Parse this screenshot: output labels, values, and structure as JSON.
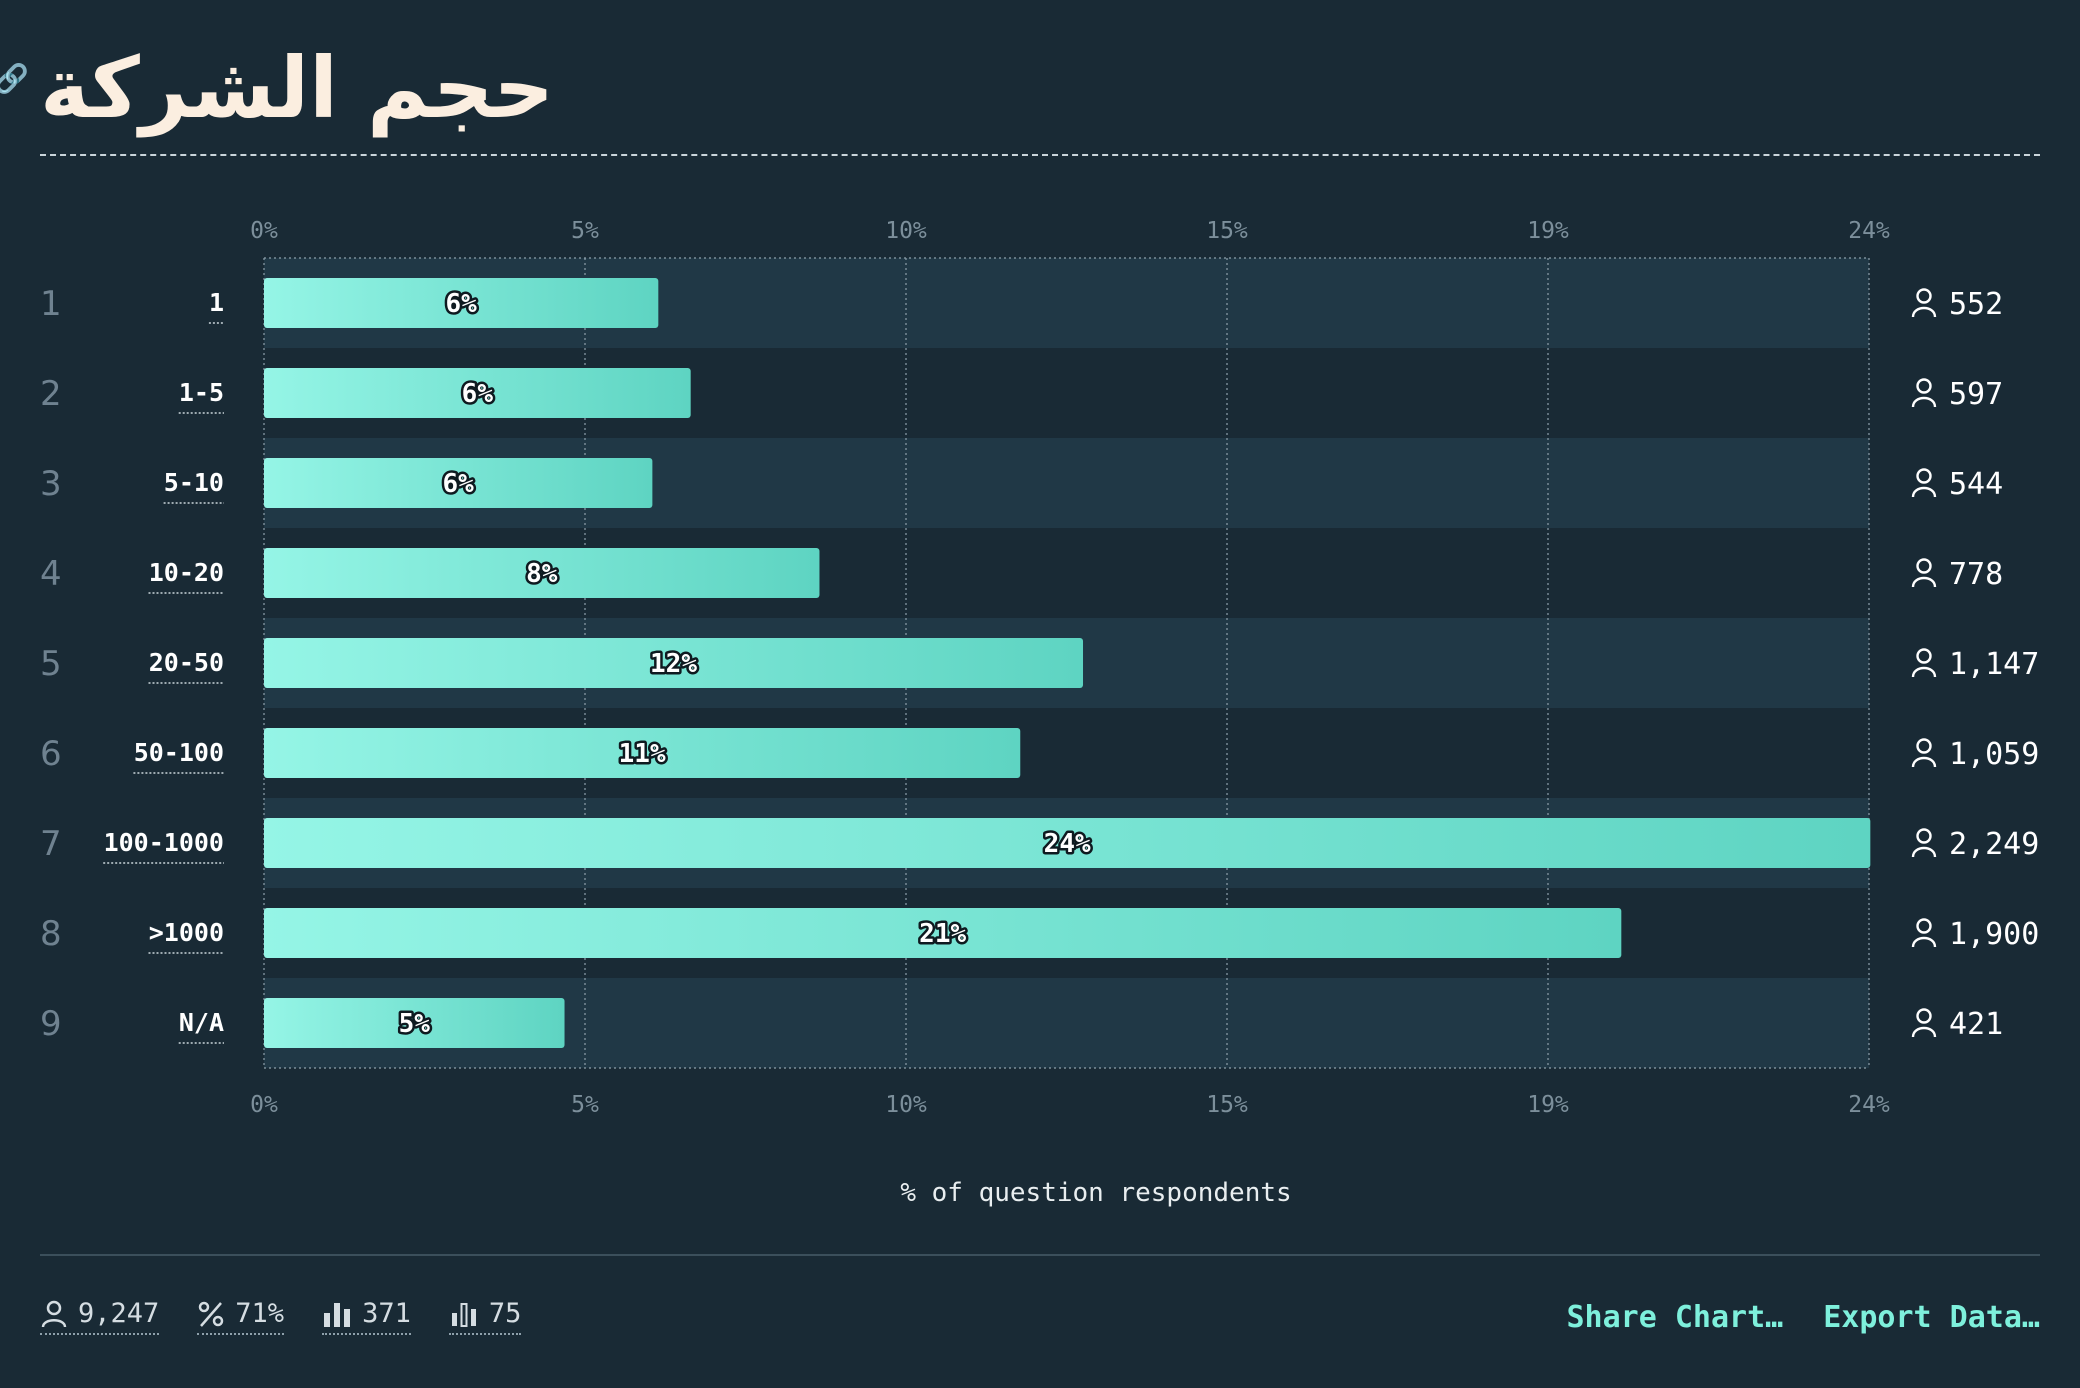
{
  "header": {
    "title": "حجم الشركة"
  },
  "chart_data": {
    "type": "bar",
    "orientation": "horizontal",
    "title": "حجم الشركة",
    "xlabel": "% of question respondents",
    "xlim": [
      0,
      24.3
    ],
    "x_ticks": [
      {
        "label": "0%",
        "value": 0
      },
      {
        "label": "5%",
        "value": 4.86
      },
      {
        "label": "10%",
        "value": 9.72
      },
      {
        "label": "15%",
        "value": 14.58
      },
      {
        "label": "19%",
        "value": 19.44
      },
      {
        "label": "24%",
        "value": 24.3
      }
    ],
    "grid": true,
    "bar_color_start": "#95f5e6",
    "bar_color_end": "#5ed4c2",
    "rows": [
      {
        "rank": "1",
        "category": "1",
        "value": 5.97,
        "value_label": "6%",
        "count": "552"
      },
      {
        "rank": "2",
        "category": "1-5",
        "value": 6.46,
        "value_label": "6%",
        "count": "597"
      },
      {
        "rank": "3",
        "category": "5-10",
        "value": 5.88,
        "value_label": "6%",
        "count": "544"
      },
      {
        "rank": "4",
        "category": "10-20",
        "value": 8.41,
        "value_label": "8%",
        "count": "778"
      },
      {
        "rank": "5",
        "category": "20-50",
        "value": 12.4,
        "value_label": "12%",
        "count": "1,147"
      },
      {
        "rank": "6",
        "category": "50-100",
        "value": 11.45,
        "value_label": "11%",
        "count": "1,059"
      },
      {
        "rank": "7",
        "category": "100-1000",
        "value": 24.32,
        "value_label": "24%",
        "count": "2,249"
      },
      {
        "rank": "8",
        "category": ">1000",
        "value": 20.55,
        "value_label": "21%",
        "count": "1,900"
      },
      {
        "rank": "9",
        "category": "N/A",
        "value": 4.55,
        "value_label": "5%",
        "count": "421"
      }
    ]
  },
  "footer": {
    "stats": [
      {
        "icon": "person-icon",
        "value": "9,247"
      },
      {
        "icon": "percent-icon",
        "value": "71%"
      },
      {
        "icon": "bar-chart-icon",
        "value": "371"
      },
      {
        "icon": "bar-chart-outline-icon",
        "value": "75"
      }
    ],
    "share_label": "Share Chart…",
    "export_label": "Export Data…"
  }
}
